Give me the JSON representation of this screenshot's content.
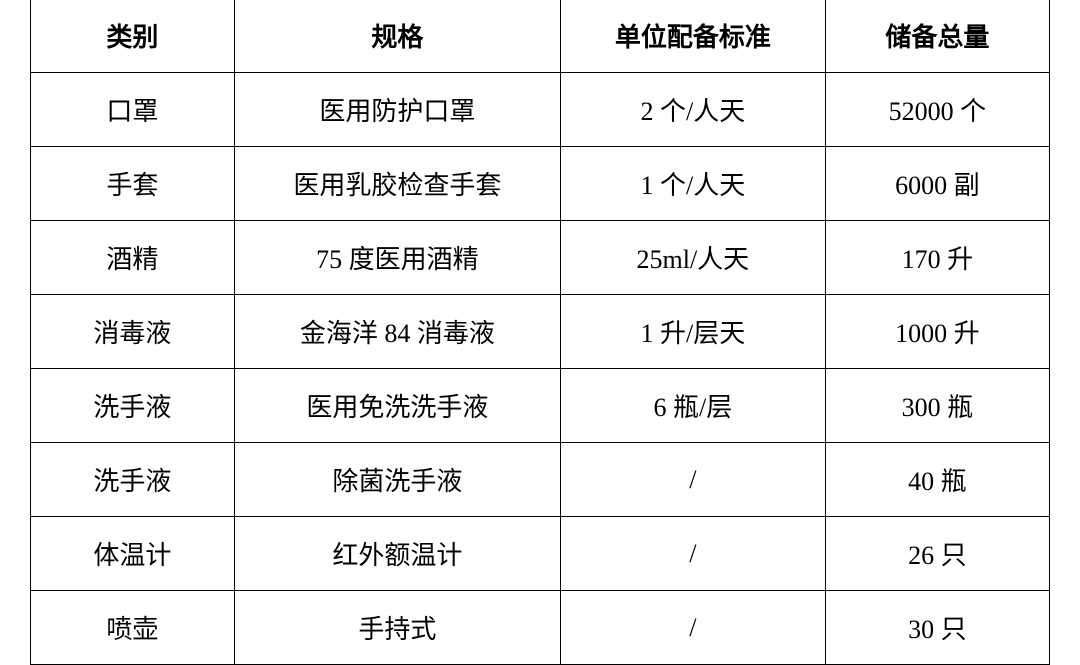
{
  "table": {
    "type": "table",
    "background_color": "#ffffff",
    "border_color": "#000000",
    "border_width": 1.5,
    "text_color": "#000000",
    "header_fontsize": 26,
    "body_fontsize": 26,
    "header_font_weight": "bold",
    "font_family": "SimSun",
    "column_widths_pct": [
      20,
      32,
      26,
      22
    ],
    "columns": [
      "类别",
      "规格",
      "单位配备标准",
      "储备总量"
    ],
    "rows": [
      [
        "口罩",
        "医用防护口罩",
        "2 个/人天",
        "52000 个"
      ],
      [
        "手套",
        "医用乳胶检查手套",
        "1 个/人天",
        "6000 副"
      ],
      [
        "酒精",
        "75 度医用酒精",
        "25ml/人天",
        "170 升"
      ],
      [
        "消毒液",
        "金海洋 84 消毒液",
        "1 升/层天",
        "1000 升"
      ],
      [
        "洗手液",
        "医用免洗洗手液",
        "6 瓶/层",
        "300 瓶"
      ],
      [
        "洗手液",
        "除菌洗手液",
        "/",
        "40 瓶"
      ],
      [
        "体温计",
        "红外额温计",
        "/",
        "26 只"
      ],
      [
        "喷壶",
        "手持式",
        "/",
        "30 只"
      ]
    ]
  }
}
